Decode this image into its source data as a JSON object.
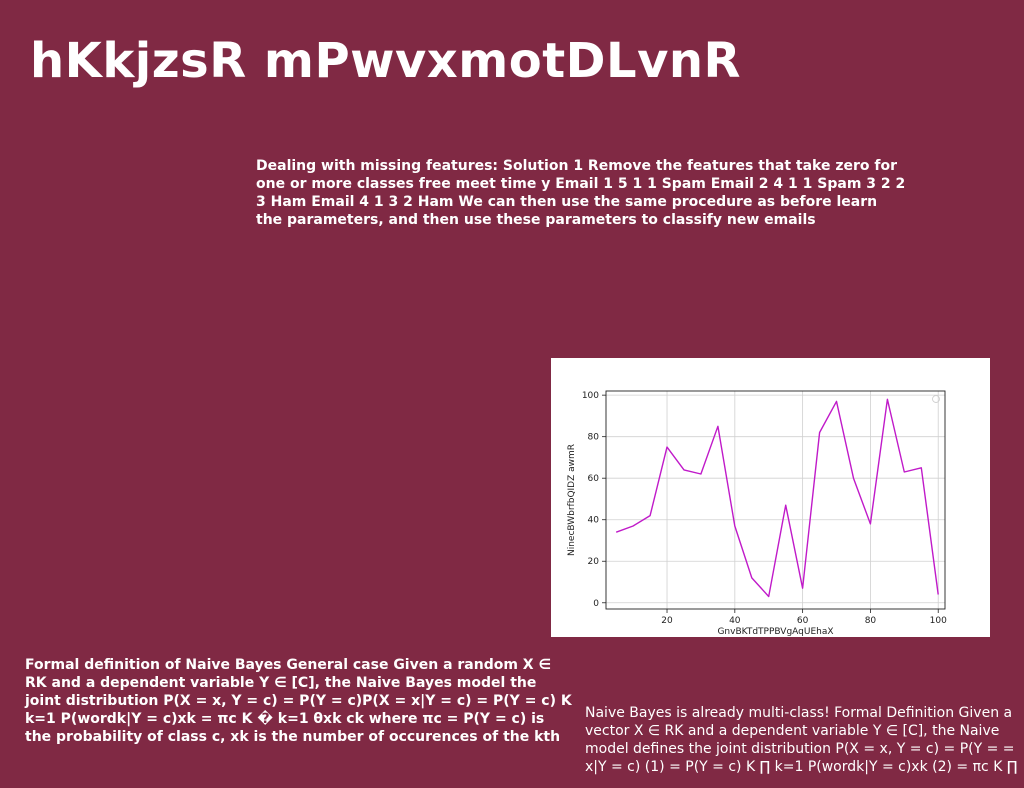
{
  "slide": {
    "title": "hKkjzsR mPwvxmotDLvnR",
    "text_top": "Dealing with missing features: Solution 1 Remove the features that take zero for one or more classes free meet time y Email 1 5 1 1 Spam Email 2 4 1 1 Spam 3 2 2 3 Ham Email 4 1 3 2 Ham We can then use the same procedure as before learn the parameters, and then use these parameters to classify new emails",
    "text_bottom_left": "Formal definition of Naive Bayes General case Given a random X ∈ RK and a dependent variable Y ∈ [C], the Naive Bayes model the joint distribution P(X = x, Y = c) = P(Y = c)P(X = x|Y = c) = P(Y = c) K k=1 P(wordk|Y = c)xk = πc K � k=1 θxk ck where πc = P(Y = c) is the probability of class c, xk is the number of occurences of the kth",
    "text_bottom_right": "Naive Bayes is already multi-class! Formal Definition Given a vector X ∈ RK and a dependent variable Y ∈ [C], the Naive model defines the joint distribution P(X = x, Y = c) = P(Y = = x|Y = c) (1) = P(Y = c) K ∏ k=1 P(wordk|Y = c)xk (2) = πc K ∏"
  },
  "chart_data": {
    "type": "line",
    "xlabel": "GnvBKTdTPPBVgAqUEhaX",
    "ylabel": "NinecBWbrfbQIDZ awmR",
    "xlim": [
      2,
      102
    ],
    "ylim": [
      -3,
      102
    ],
    "xticks": [
      20,
      40,
      60,
      80,
      100
    ],
    "yticks": [
      0,
      20,
      40,
      60,
      80,
      100
    ],
    "grid": true,
    "legend": "top-right",
    "series": [
      {
        "color": "#c01ac9",
        "x": [
          5,
          10,
          15,
          20,
          25,
          30,
          35,
          40,
          45,
          50,
          55,
          60,
          65,
          70,
          75,
          80,
          85,
          90,
          95,
          100
        ],
        "y": [
          34,
          37,
          42,
          75,
          64,
          62,
          85,
          37,
          12,
          3,
          47,
          7,
          82,
          97,
          60,
          38,
          98,
          63,
          65,
          4
        ]
      }
    ]
  }
}
